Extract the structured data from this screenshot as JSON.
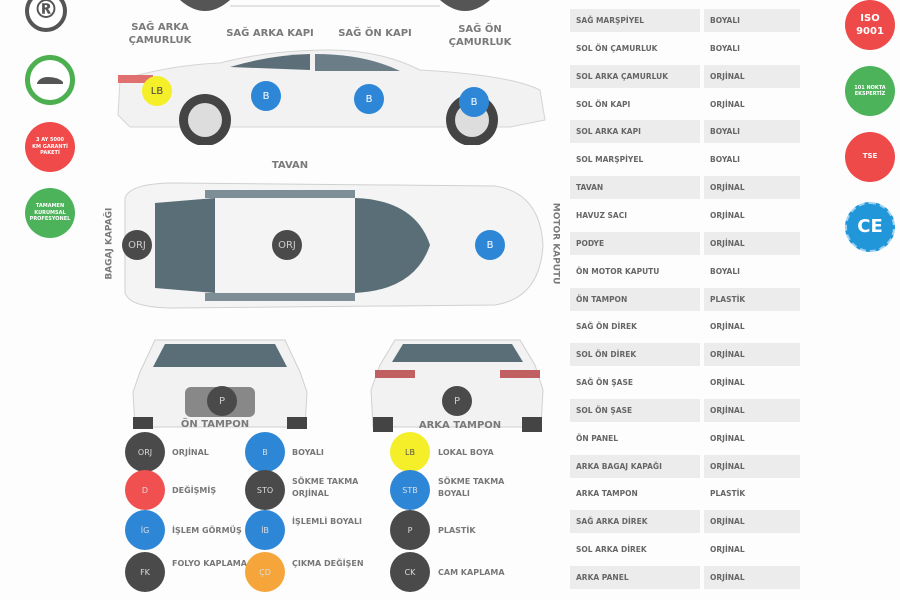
{
  "badges_left": [
    {
      "text": "®",
      "color": "#555555"
    },
    {
      "text": "",
      "color": "#4caf50"
    },
    {
      "text": "3 AY 5000 KM GARANTİ PAKETİ",
      "color": "#f04a4a"
    },
    {
      "text": "TAMAMEN KURUMSAL PROFESYONEL",
      "color": "#4cb35a"
    }
  ],
  "badges_right": [
    {
      "text": "ISO 9001",
      "color": "#ee4a4a"
    },
    {
      "text": "101 NOKTA EKSPERTİZ",
      "color": "#4cb35a"
    },
    {
      "text": "TSE",
      "color": "#ee4a4a"
    },
    {
      "text": "CE",
      "color": "#2196d9"
    }
  ],
  "side_view": {
    "labels": [
      "SAĞ ARKA ÇAMURLUK",
      "SAĞ ARKA KAPI",
      "SAĞ ÖN KAPI",
      "SAĞ ÖN ÇAMURLUK"
    ],
    "markers": [
      "LB",
      "B",
      "B",
      "B"
    ]
  },
  "top_view": {
    "roof_label": "TAVAN",
    "trunk_label": "BAGAJ KAPAĞI",
    "hood_label": "MOTOR KAPUTU",
    "markers": [
      "ORJ",
      "ORJ",
      "B"
    ]
  },
  "front_view": {
    "label": "ÖN TAMPON",
    "marker": "P"
  },
  "rear_view": {
    "label": "ARKA TAMPON",
    "marker": "P"
  },
  "legend": [
    {
      "code": "ORJ",
      "label": "ORJİNAL",
      "color": "#4a4a4a"
    },
    {
      "code": "B",
      "label": "BOYALI",
      "color": "#2d86d6"
    },
    {
      "code": "LB",
      "label": "LOKAL BOYA",
      "color": "#f5ef2a"
    },
    {
      "code": "D",
      "label": "DEĞİŞMİŞ",
      "color": "#f05050"
    },
    {
      "code": "STO",
      "label": "SÖKME TAKMA ORJİNAL",
      "color": "#4a4a4a"
    },
    {
      "code": "STB",
      "label": "SÖKME TAKMA BOYALI",
      "color": "#2d86d6"
    },
    {
      "code": "İG",
      "label": "İŞLEM GÖRMÜŞ",
      "color": "#2d86d6"
    },
    {
      "code": "İB",
      "label": "İŞLEMLİ BOYALI",
      "color": "#2d86d6"
    },
    {
      "code": "P",
      "label": "PLASTİK",
      "color": "#4a4a4a"
    },
    {
      "code": "FK",
      "label": "FOLYO KAPLAMA",
      "color": "#4a4a4a"
    },
    {
      "code": "ÇD",
      "label": "ÇIKMA DEĞİŞEN",
      "color": "#f5a53a"
    },
    {
      "code": "CK",
      "label": "CAM KAPLAMA",
      "color": "#4a4a4a"
    }
  ],
  "parts_table": [
    [
      "SAĞ MARŞPİYEL",
      "BOYALI"
    ],
    [
      "SOL ÖN ÇAMURLUK",
      "BOYALI"
    ],
    [
      "SOL ARKA ÇAMURLUK",
      "ORJİNAL"
    ],
    [
      "SOL ÖN KAPI",
      "ORJİNAL"
    ],
    [
      "SOL ARKA KAPI",
      "BOYALI"
    ],
    [
      "SOL MARŞPİYEL",
      "BOYALI"
    ],
    [
      "TAVAN",
      "ORJİNAL"
    ],
    [
      "HAVUZ SACI",
      "ORJİNAL"
    ],
    [
      "PODYE",
      "ORJİNAL"
    ],
    [
      "ÖN MOTOR KAPUTU",
      "BOYALI"
    ],
    [
      "ÖN TAMPON",
      "PLASTİK"
    ],
    [
      "SAĞ ÖN DİREK",
      "ORJİNAL"
    ],
    [
      "SOL ÖN DİREK",
      "ORJİNAL"
    ],
    [
      "SAĞ ÖN ŞASE",
      "ORJİNAL"
    ],
    [
      "SOL ÖN ŞASE",
      "ORJİNAL"
    ],
    [
      "ÖN PANEL",
      "ORJİNAL"
    ],
    [
      "ARKA BAGAJ KAPAĞI",
      "ORJİNAL"
    ],
    [
      "ARKA TAMPON",
      "PLASTİK"
    ],
    [
      "SAĞ ARKA DİREK",
      "ORJİNAL"
    ],
    [
      "SOL ARKA DİREK",
      "ORJİNAL"
    ],
    [
      "ARKA PANEL",
      "ORJİNAL"
    ]
  ]
}
